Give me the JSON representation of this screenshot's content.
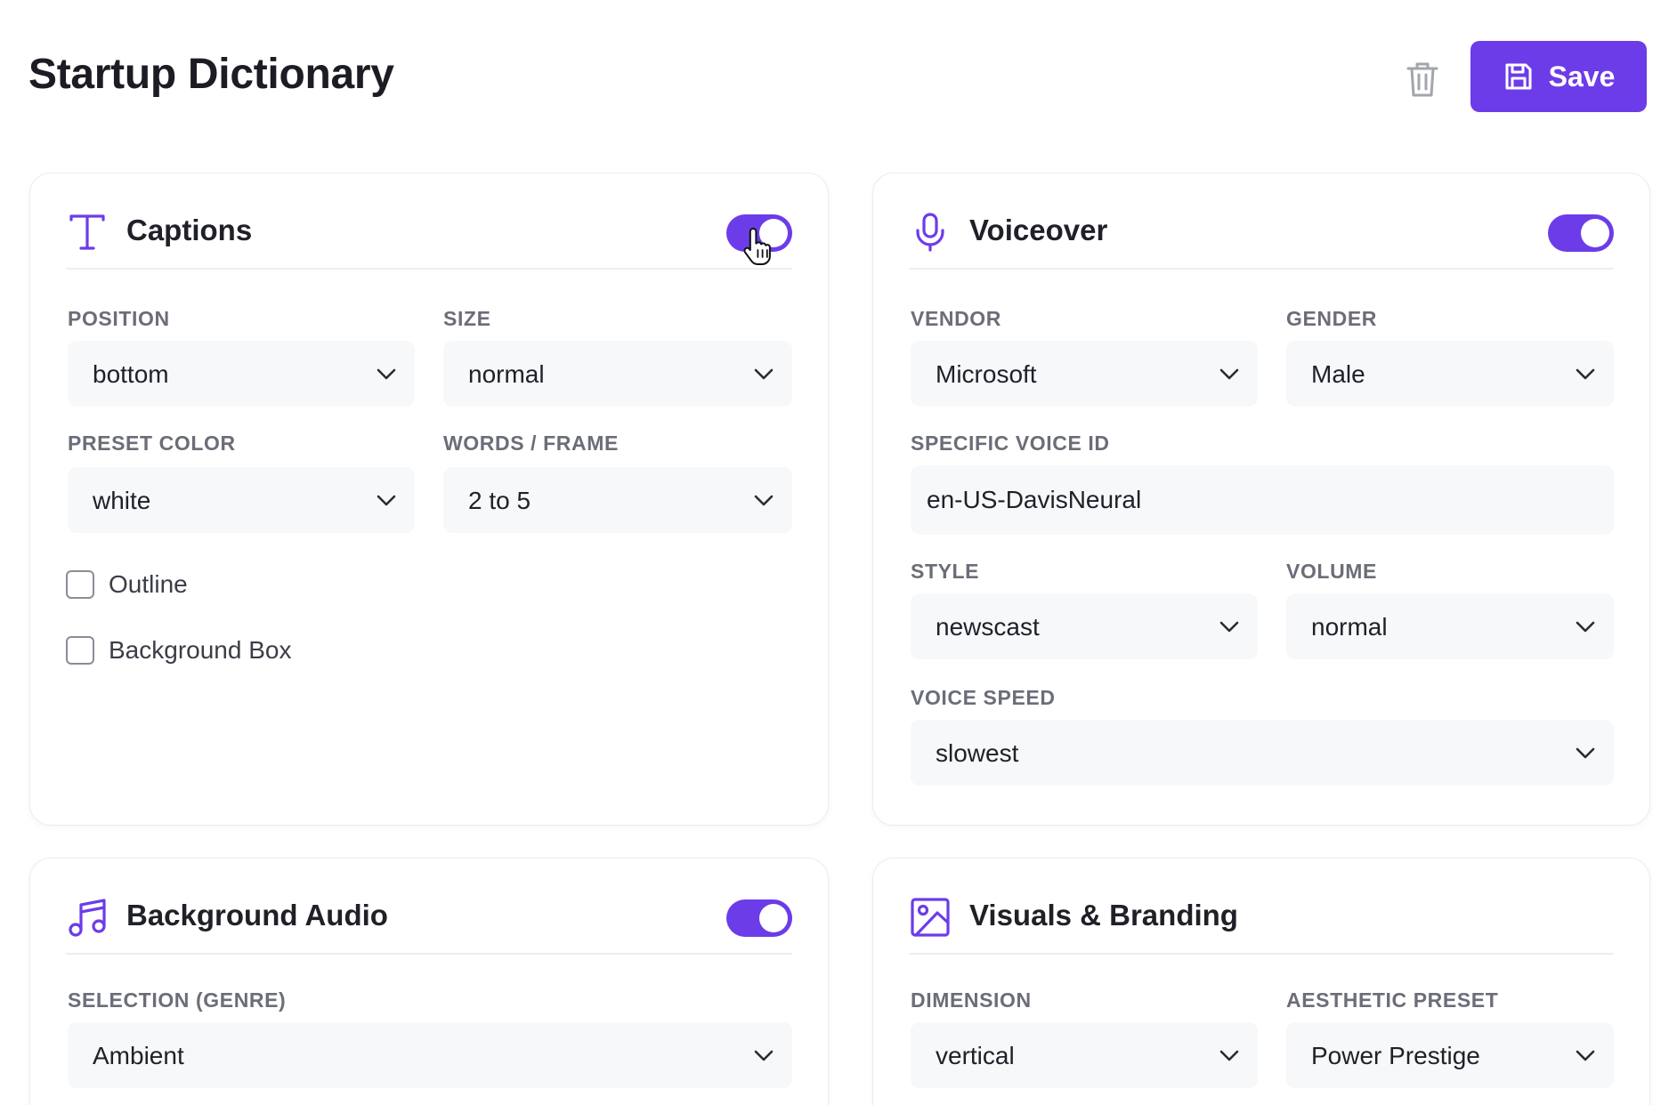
{
  "header": {
    "title": "Startup Dictionary",
    "save_label": "Save",
    "trash_icon": "trash-icon",
    "save_icon": "floppy-disk-icon"
  },
  "colors": {
    "accent": "#6c3ce9",
    "field_bg": "#f7f8fa",
    "label": "#6b6d78"
  },
  "captions": {
    "title": "Captions",
    "icon": "text-type-icon",
    "enabled": true,
    "position_label": "POSITION",
    "position_value": "bottom",
    "size_label": "SIZE",
    "size_value": "normal",
    "preset_color_label": "PRESET COLOR",
    "preset_color_value": "white",
    "words_frame_label": "WORDS / FRAME",
    "words_frame_value": "2 to 5",
    "outline_label": "Outline",
    "outline_checked": false,
    "background_box_label": "Background Box",
    "background_box_checked": false
  },
  "voiceover": {
    "title": "Voiceover",
    "icon": "microphone-icon",
    "enabled": true,
    "vendor_label": "VENDOR",
    "vendor_value": "Microsoft",
    "gender_label": "GENDER",
    "gender_value": "Male",
    "voice_id_label": "SPECIFIC VOICE ID",
    "voice_id_value": "en-US-DavisNeural",
    "style_label": "STYLE",
    "style_value": "newscast",
    "volume_label": "VOLUME",
    "volume_value": "normal",
    "speed_label": "VOICE SPEED",
    "speed_value": "slowest"
  },
  "background_audio": {
    "title": "Background Audio",
    "icon": "music-note-icon",
    "enabled": true,
    "genre_label": "SELECTION (GENRE)",
    "genre_value": "Ambient"
  },
  "visuals": {
    "title": "Visuals & Branding",
    "icon": "image-icon",
    "dimension_label": "DIMENSION",
    "dimension_value": "vertical",
    "aesthetic_label": "AESTHETIC PRESET",
    "aesthetic_value": "Power Prestige"
  }
}
